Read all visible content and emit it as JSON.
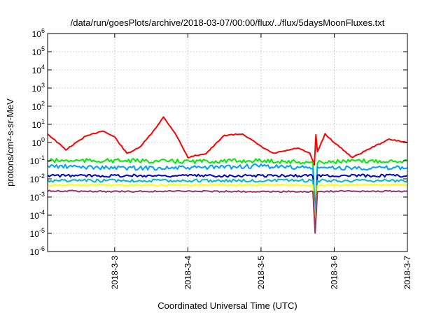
{
  "chart_data": {
    "type": "line",
    "title": "/data/run/goesPlots/archive/2018-03-07/00:00/flux/../flux/5daysMoonFluxes.txt",
    "xlabel": "Coordinated Universal Time (UTC)",
    "ylabel": "protons/cm²-s-sr-MeV",
    "y_scale": "log",
    "ylim": [
      1e-06,
      1000000.0
    ],
    "y_ticks": [
      {
        "label": "10-6",
        "exp": -6
      },
      {
        "label": "10-5",
        "exp": -5
      },
      {
        "label": "10-4",
        "exp": -4
      },
      {
        "label": "10-3",
        "exp": -3
      },
      {
        "label": "10-2",
        "exp": -2
      },
      {
        "label": "10-1",
        "exp": -1
      },
      {
        "label": "100",
        "exp": 0
      },
      {
        "label": "101",
        "exp": 1
      },
      {
        "label": "102",
        "exp": 2
      },
      {
        "label": "103",
        "exp": 3
      },
      {
        "label": "104",
        "exp": 4
      },
      {
        "label": "105",
        "exp": 5
      },
      {
        "label": "106",
        "exp": 6
      }
    ],
    "xlim": [
      "2018-03-02T02:00",
      "2018-03-07T00:00"
    ],
    "x_ticks": [
      "2018-3-3",
      "2018-3-4",
      "2018-3-5",
      "2018-3-6",
      "2018-3-7"
    ],
    "grid": true,
    "series": [
      {
        "color": "#ff0000",
        "x": [
          "2018-03-02T02:00",
          "2018-03-02T08:00",
          "2018-03-02T14:00",
          "2018-03-02T20:00",
          "2018-03-03T00:00",
          "2018-03-03T04:00",
          "2018-03-03T08:00",
          "2018-03-03T12:00",
          "2018-03-03T16:00",
          "2018-03-03T20:00",
          "2018-03-04T00:00",
          "2018-03-04T03:00",
          "2018-03-04T06:00",
          "2018-03-04T12:00",
          "2018-03-04T18:00",
          "2018-03-05T00:00",
          "2018-03-05T04:00",
          "2018-03-05T08:00",
          "2018-03-05T12:00",
          "2018-03-05T16:00",
          "2018-03-05T17:30",
          "2018-03-05T18:00",
          "2018-03-05T18:30",
          "2018-03-05T21:00",
          "2018-03-06T00:00",
          "2018-03-06T06:00",
          "2018-03-06T12:00",
          "2018-03-06T18:00",
          "2018-03-07T00:00"
        ],
        "values": [
          3.0,
          0.4,
          2.0,
          4.5,
          2.0,
          0.25,
          0.5,
          3.0,
          25,
          3.0,
          0.15,
          0.2,
          0.25,
          2.5,
          3.0,
          0.6,
          0.25,
          0.35,
          0.5,
          0.25,
          0.06,
          2.5,
          0.3,
          3.0,
          1.0,
          0.15,
          0.5,
          1.5,
          1.0
        ]
      },
      {
        "color": "#00ee00",
        "x": [
          "2018-03-02T02:00",
          "2018-03-03T00:00",
          "2018-03-04T00:00",
          "2018-03-05T00:00",
          "2018-03-05T17:00",
          "2018-03-05T17:45",
          "2018-03-05T18:30",
          "2018-03-06T00:00",
          "2018-03-07T00:00"
        ],
        "values": [
          0.1,
          0.1,
          0.09,
          0.1,
          0.08,
          0.0001,
          0.08,
          0.09,
          0.1
        ]
      },
      {
        "color": "#00a0ff",
        "x": [
          "2018-03-02T02:00",
          "2018-03-03T00:00",
          "2018-03-04T00:00",
          "2018-03-05T00:00",
          "2018-03-05T17:00",
          "2018-03-05T17:45",
          "2018-03-05T18:30",
          "2018-03-06T00:00",
          "2018-03-07T00:00"
        ],
        "values": [
          0.05,
          0.04,
          0.04,
          0.05,
          0.04,
          0.0001,
          0.04,
          0.04,
          0.04
        ]
      },
      {
        "color": "#0000cc",
        "x": [
          "2018-03-02T02:00",
          "2018-03-03T00:00",
          "2018-03-04T00:00",
          "2018-03-05T00:00",
          "2018-03-05T17:00",
          "2018-03-05T17:45",
          "2018-03-05T18:30",
          "2018-03-06T00:00",
          "2018-03-07T00:00"
        ],
        "values": [
          0.015,
          0.015,
          0.015,
          0.015,
          0.015,
          0.0001,
          0.015,
          0.015,
          0.015
        ]
      },
      {
        "color": "#00bbbb",
        "x": [
          "2018-03-02T02:00",
          "2018-03-03T00:00",
          "2018-03-04T00:00",
          "2018-03-05T00:00",
          "2018-03-05T17:00",
          "2018-03-05T17:45",
          "2018-03-05T18:30",
          "2018-03-06T00:00",
          "2018-03-07T00:00"
        ],
        "values": [
          0.008,
          0.008,
          0.008,
          0.008,
          0.008,
          0.0001,
          0.008,
          0.008,
          0.008
        ]
      },
      {
        "color": "#ffff00",
        "x": [
          "2018-03-02T02:00",
          "2018-03-03T00:00",
          "2018-03-04T00:00",
          "2018-03-05T00:00",
          "2018-03-05T17:00",
          "2018-03-05T17:45",
          "2018-03-05T18:30",
          "2018-03-06T00:00",
          "2018-03-07T00:00"
        ],
        "values": [
          0.0045,
          0.0045,
          0.0045,
          0.0045,
          0.0045,
          2e-05,
          0.0045,
          0.0045,
          0.0045
        ]
      },
      {
        "color": "#993366",
        "x": [
          "2018-03-02T02:00",
          "2018-03-03T00:00",
          "2018-03-04T00:00",
          "2018-03-05T00:00",
          "2018-03-05T17:00",
          "2018-03-05T17:45",
          "2018-03-05T18:30",
          "2018-03-06T00:00",
          "2018-03-07T00:00"
        ],
        "values": [
          0.0022,
          0.002,
          0.0021,
          0.002,
          0.002,
          1e-05,
          0.002,
          0.0021,
          0.0021
        ]
      }
    ]
  }
}
